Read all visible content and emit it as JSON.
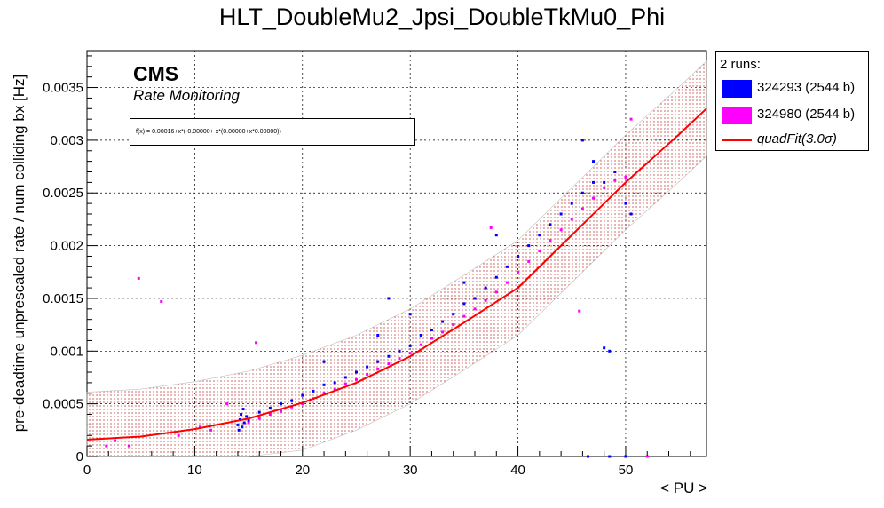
{
  "header": {
    "title": "HLT_DoubleMu2_Jpsi_DoubleTkMu0_Phi"
  },
  "annotations": {
    "experiment": "CMS",
    "subtitle": "Rate Monitoring",
    "fit_formula": "f(x) = 0.00016+x*(-0.00000+ x*(0.00000+x*0.00000))"
  },
  "legend": {
    "header": "2 runs:",
    "items": [
      {
        "label": "324293 (2544 b)",
        "color": "#0000ff",
        "kind": "box"
      },
      {
        "label": "324980 (2544 b)",
        "color": "#ff00ff",
        "kind": "box"
      },
      {
        "label": "quadFit(3.0σ)",
        "color": "#ff0000",
        "kind": "line"
      }
    ]
  },
  "axes": {
    "xlabel": "< PU >",
    "ylabel": "pre-deadtime unprescaled rate / num colliding bx [Hz]"
  },
  "chart_data": {
    "type": "scatter",
    "title": "HLT_DoubleMu2_Jpsi_DoubleTkMu0_Phi",
    "xlabel": "< PU >",
    "ylabel": "pre-deadtime unprescaled rate / num colliding bx [Hz]",
    "xlim": [
      0,
      57.5
    ],
    "ylim": [
      0,
      0.00385
    ],
    "x_ticks": [
      0,
      10,
      20,
      30,
      40,
      50
    ],
    "y_ticks": [
      0,
      0.0005,
      0.001,
      0.0015,
      0.002,
      0.0025,
      0.003,
      0.0035
    ],
    "x_tick_labels": [
      "0",
      "10",
      "20",
      "30",
      "40",
      "50"
    ],
    "y_tick_labels": [
      "0",
      "0.0005",
      "0.001",
      "0.0015",
      "0.002",
      "0.0025",
      "0.003",
      "0.0035"
    ],
    "grid": true,
    "legend_position": "outside-right",
    "fit": {
      "name": "quadFit(3.0σ)",
      "formula": "f(x) = 0.00016+x*(-0.00000+ x*(0.00000+x*0.00000))",
      "curve": [
        [
          0,
          0.00016
        ],
        [
          5,
          0.00019
        ],
        [
          10,
          0.00026
        ],
        [
          15,
          0.00036
        ],
        [
          20,
          0.00051
        ],
        [
          25,
          0.0007
        ],
        [
          30,
          0.00095
        ],
        [
          35,
          0.00127
        ],
        [
          40,
          0.0016
        ],
        [
          45,
          0.0021
        ],
        [
          50,
          0.0026
        ],
        [
          55,
          0.00306
        ],
        [
          57.5,
          0.0033
        ]
      ],
      "band_halfwidth": 0.00045,
      "color": "#ff0000"
    },
    "series": [
      {
        "name": "324293 (2544 b)",
        "color": "#0000ff",
        "points": [
          [
            14.0,
            0.0003
          ],
          [
            14.1,
            0.00025
          ],
          [
            14.2,
            0.00035
          ],
          [
            14.3,
            0.0004
          ],
          [
            14.4,
            0.00028
          ],
          [
            14.5,
            0.00045
          ],
          [
            14.6,
            0.00032
          ],
          [
            14.8,
            0.00038
          ],
          [
            15,
            0.00034
          ],
          [
            16,
            0.00042
          ],
          [
            17,
            0.00046
          ],
          [
            18,
            0.0005
          ],
          [
            19,
            0.00053
          ],
          [
            20,
            0.00058
          ],
          [
            21,
            0.00062
          ],
          [
            22,
            0.00068
          ],
          [
            23,
            0.0007
          ],
          [
            24,
            0.00075
          ],
          [
            25,
            0.0008
          ],
          [
            26,
            0.00085
          ],
          [
            27,
            0.0009
          ],
          [
            28,
            0.00095
          ],
          [
            29,
            0.001
          ],
          [
            30,
            0.00105
          ],
          [
            31,
            0.00115
          ],
          [
            32,
            0.0012
          ],
          [
            33,
            0.00128
          ],
          [
            34,
            0.00135
          ],
          [
            35,
            0.00145
          ],
          [
            36,
            0.0015
          ],
          [
            37,
            0.0016
          ],
          [
            38,
            0.0017
          ],
          [
            39,
            0.0018
          ],
          [
            40,
            0.0019
          ],
          [
            41,
            0.002
          ],
          [
            42,
            0.0021
          ],
          [
            43,
            0.0022
          ],
          [
            44,
            0.0023
          ],
          [
            45,
            0.0024
          ],
          [
            46,
            0.0025
          ],
          [
            47,
            0.0026
          ],
          [
            48,
            0.0026
          ],
          [
            49,
            0.0027
          ],
          [
            50,
            0.0024
          ],
          [
            50.5,
            0.0023
          ],
          [
            46,
            0.003
          ],
          [
            47,
            0.0028
          ],
          [
            48.5,
            0.001
          ],
          [
            48,
            0.00103
          ],
          [
            28,
            0.0015
          ],
          [
            30,
            0.00135
          ],
          [
            35,
            0.00165
          ],
          [
            38,
            0.0021
          ],
          [
            27,
            0.00115
          ],
          [
            22,
            0.0009
          ],
          [
            46.5,
            0.0
          ],
          [
            48.5,
            0.0
          ],
          [
            50,
            0.0
          ]
        ]
      },
      {
        "name": "324980 (2544 b)",
        "color": "#ff00ff",
        "points": [
          [
            15,
            0.00032
          ],
          [
            16,
            0.00036
          ],
          [
            17,
            0.0004
          ],
          [
            18,
            0.00043
          ],
          [
            19,
            0.00047
          ],
          [
            20,
            0.0005
          ],
          [
            21,
            0.00055
          ],
          [
            22,
            0.0006
          ],
          [
            23,
            0.00064
          ],
          [
            24,
            0.00069
          ],
          [
            25,
            0.00073
          ],
          [
            26,
            0.00078
          ],
          [
            27,
            0.00083
          ],
          [
            28,
            0.00088
          ],
          [
            29,
            0.00093
          ],
          [
            30,
            0.00098
          ],
          [
            31,
            0.00106
          ],
          [
            32,
            0.00112
          ],
          [
            33,
            0.00118
          ],
          [
            34,
            0.00125
          ],
          [
            35,
            0.00133
          ],
          [
            36,
            0.0014
          ],
          [
            37,
            0.00148
          ],
          [
            38,
            0.00156
          ],
          [
            39,
            0.00165
          ],
          [
            40,
            0.00175
          ],
          [
            41,
            0.00185
          ],
          [
            42,
            0.00195
          ],
          [
            43,
            0.00205
          ],
          [
            44,
            0.00215
          ],
          [
            45,
            0.00225
          ],
          [
            46,
            0.00235
          ],
          [
            47,
            0.00245
          ],
          [
            48,
            0.00255
          ],
          [
            49,
            0.00262
          ],
          [
            50,
            0.00265
          ],
          [
            50.5,
            0.0032
          ],
          [
            4.8,
            0.00169
          ],
          [
            6.9,
            0.00147
          ],
          [
            15.7,
            0.00108
          ],
          [
            37.5,
            0.00217
          ],
          [
            45.7,
            0.00138
          ],
          [
            1.8,
            0.0001
          ],
          [
            2.6,
            0.00015
          ],
          [
            3.9,
            0.0001
          ],
          [
            52,
            0.0
          ],
          [
            13,
            0.0005
          ],
          [
            11.5,
            0.00025
          ],
          [
            8.5,
            0.0002
          ],
          [
            10.5,
            0.00028
          ]
        ]
      }
    ]
  }
}
